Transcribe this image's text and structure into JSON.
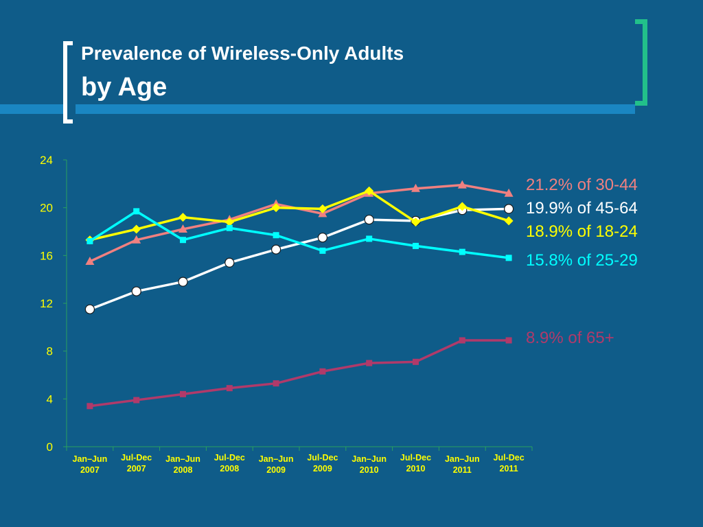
{
  "title": {
    "line1": "Prevalence of Wireless-Only Adults",
    "line2": "by Age"
  },
  "colors": {
    "background": "#0f5c89",
    "accent_band": "#1a86c2",
    "right_bracket": "#22c08a",
    "axis_text": "#ffff00"
  },
  "chart_data": {
    "type": "line",
    "title": "Prevalence of Wireless-Only Adults by Age",
    "xlabel": "",
    "ylabel": "",
    "ylim": [
      0,
      24
    ],
    "yticks": [
      0,
      4,
      8,
      12,
      16,
      20,
      24
    ],
    "grid": false,
    "legend": "right-side end labels",
    "categories": [
      "Jan–Jun 2007",
      "Jul-Dec 2007",
      "Jan–Jun 2008",
      "Jul-Dec 2008",
      "Jan–Jun 2009",
      "Jul-Dec 2009",
      "Jan–Jun 2010",
      "Jul-Dec 2010",
      "Jan–Jun 2011",
      "Jul-Dec 2011"
    ],
    "category_labels": [
      [
        "Jan–Jun",
        "2007"
      ],
      [
        "Jul-Dec",
        "2007"
      ],
      [
        "Jan–Jun",
        "2008"
      ],
      [
        "Jul-Dec",
        "2008"
      ],
      [
        "Jan–Jun",
        "2009"
      ],
      [
        "Jul-Dec",
        "2009"
      ],
      [
        "Jan–Jun",
        "2010"
      ],
      [
        "Jul-Dec",
        "2010"
      ],
      [
        "Jan–Jun",
        "2011"
      ],
      [
        "Jul-Dec",
        "2011"
      ]
    ],
    "series": [
      {
        "name": "30-44",
        "label": "21.2% of 30-44",
        "color": "#f08080",
        "marker": "triangle",
        "values": [
          15.5,
          17.3,
          18.2,
          19.0,
          20.3,
          19.5,
          21.2,
          21.6,
          21.9,
          21.2
        ]
      },
      {
        "name": "45-64",
        "label": "19.9% of 45-64",
        "color": "#ffffff",
        "marker": "circle",
        "values": [
          11.5,
          13.0,
          13.8,
          15.4,
          16.5,
          17.5,
          19.0,
          18.9,
          19.8,
          19.9
        ]
      },
      {
        "name": "18-24",
        "label": "18.9% of 18-24",
        "color": "#ffff00",
        "marker": "diamond",
        "values": [
          17.3,
          18.2,
          19.2,
          18.8,
          20.0,
          19.9,
          21.4,
          18.8,
          20.1,
          18.9
        ]
      },
      {
        "name": "25-29",
        "label": "15.8% of 25-29",
        "color": "#00ffff",
        "marker": "square",
        "values": [
          17.2,
          19.7,
          17.3,
          18.3,
          17.7,
          16.4,
          17.4,
          16.8,
          16.3,
          15.8
        ]
      },
      {
        "name": "65+",
        "label": "8.9% of 65+",
        "color": "#b03a6a",
        "marker": "square",
        "values": [
          3.4,
          3.9,
          4.4,
          4.9,
          5.3,
          6.3,
          7.0,
          7.1,
          8.9,
          8.9
        ]
      }
    ]
  }
}
